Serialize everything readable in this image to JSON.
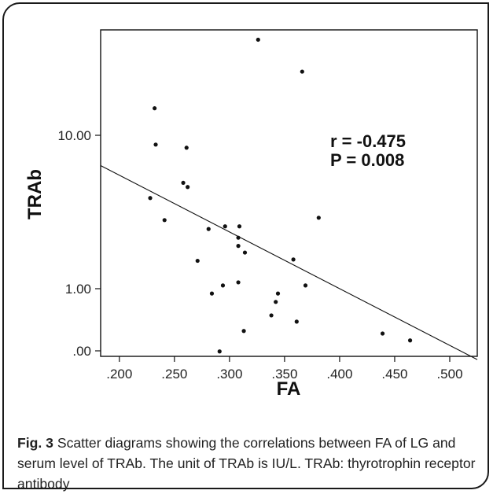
{
  "chart_data": {
    "type": "scatter",
    "xlabel": "FA",
    "ylabel": "TRAb",
    "x_ticks": [
      ".200",
      ".250",
      ".300",
      ".350",
      ".400",
      ".450",
      ".500"
    ],
    "y_ticks": [
      "10.00",
      "1.00",
      ".00"
    ],
    "xlim": [
      0.183,
      0.525
    ],
    "y_scale": "log",
    "annotations": [
      "r = -0.475",
      "P = 0.008"
    ],
    "grid": false,
    "points": [
      {
        "x": 0.326,
        "y": 42.0
      },
      {
        "x": 0.366,
        "y": 26.0
      },
      {
        "x": 0.232,
        "y": 15.0
      },
      {
        "x": 0.233,
        "y": 8.7
      },
      {
        "x": 0.261,
        "y": 8.3
      },
      {
        "x": 0.258,
        "y": 4.9
      },
      {
        "x": 0.262,
        "y": 4.6
      },
      {
        "x": 0.228,
        "y": 3.9
      },
      {
        "x": 0.381,
        "y": 2.9
      },
      {
        "x": 0.241,
        "y": 2.8
      },
      {
        "x": 0.281,
        "y": 2.45
      },
      {
        "x": 0.296,
        "y": 2.55
      },
      {
        "x": 0.309,
        "y": 2.55
      },
      {
        "x": 0.308,
        "y": 2.15
      },
      {
        "x": 0.308,
        "y": 1.9
      },
      {
        "x": 0.314,
        "y": 1.72
      },
      {
        "x": 0.271,
        "y": 1.52
      },
      {
        "x": 0.358,
        "y": 1.55
      },
      {
        "x": 0.308,
        "y": 1.1
      },
      {
        "x": 0.294,
        "y": 1.05
      },
      {
        "x": 0.369,
        "y": 1.05
      },
      {
        "x": 0.284,
        "y": 0.93
      },
      {
        "x": 0.344,
        "y": 0.93
      },
      {
        "x": 0.342,
        "y": 0.82
      },
      {
        "x": 0.338,
        "y": 0.67
      },
      {
        "x": 0.361,
        "y": 0.61
      },
      {
        "x": 0.313,
        "y": 0.53
      },
      {
        "x": 0.439,
        "y": 0.51
      },
      {
        "x": 0.464,
        "y": 0.46
      },
      {
        "x": 0.291,
        "y": 0.39
      }
    ],
    "fit_line": {
      "x": [
        0.183,
        0.525
      ],
      "y": [
        6.35,
        0.345
      ]
    }
  },
  "caption": {
    "label": "Fig. 3",
    "text": " Scatter diagrams showing the correlations between FA of LG and serum level of TRAb. The unit of TRAb is IU/L. TRAb: thyrotrophin receptor antibody"
  },
  "colors": {
    "ink": "#111111",
    "frame": "#1a1a1a"
  }
}
